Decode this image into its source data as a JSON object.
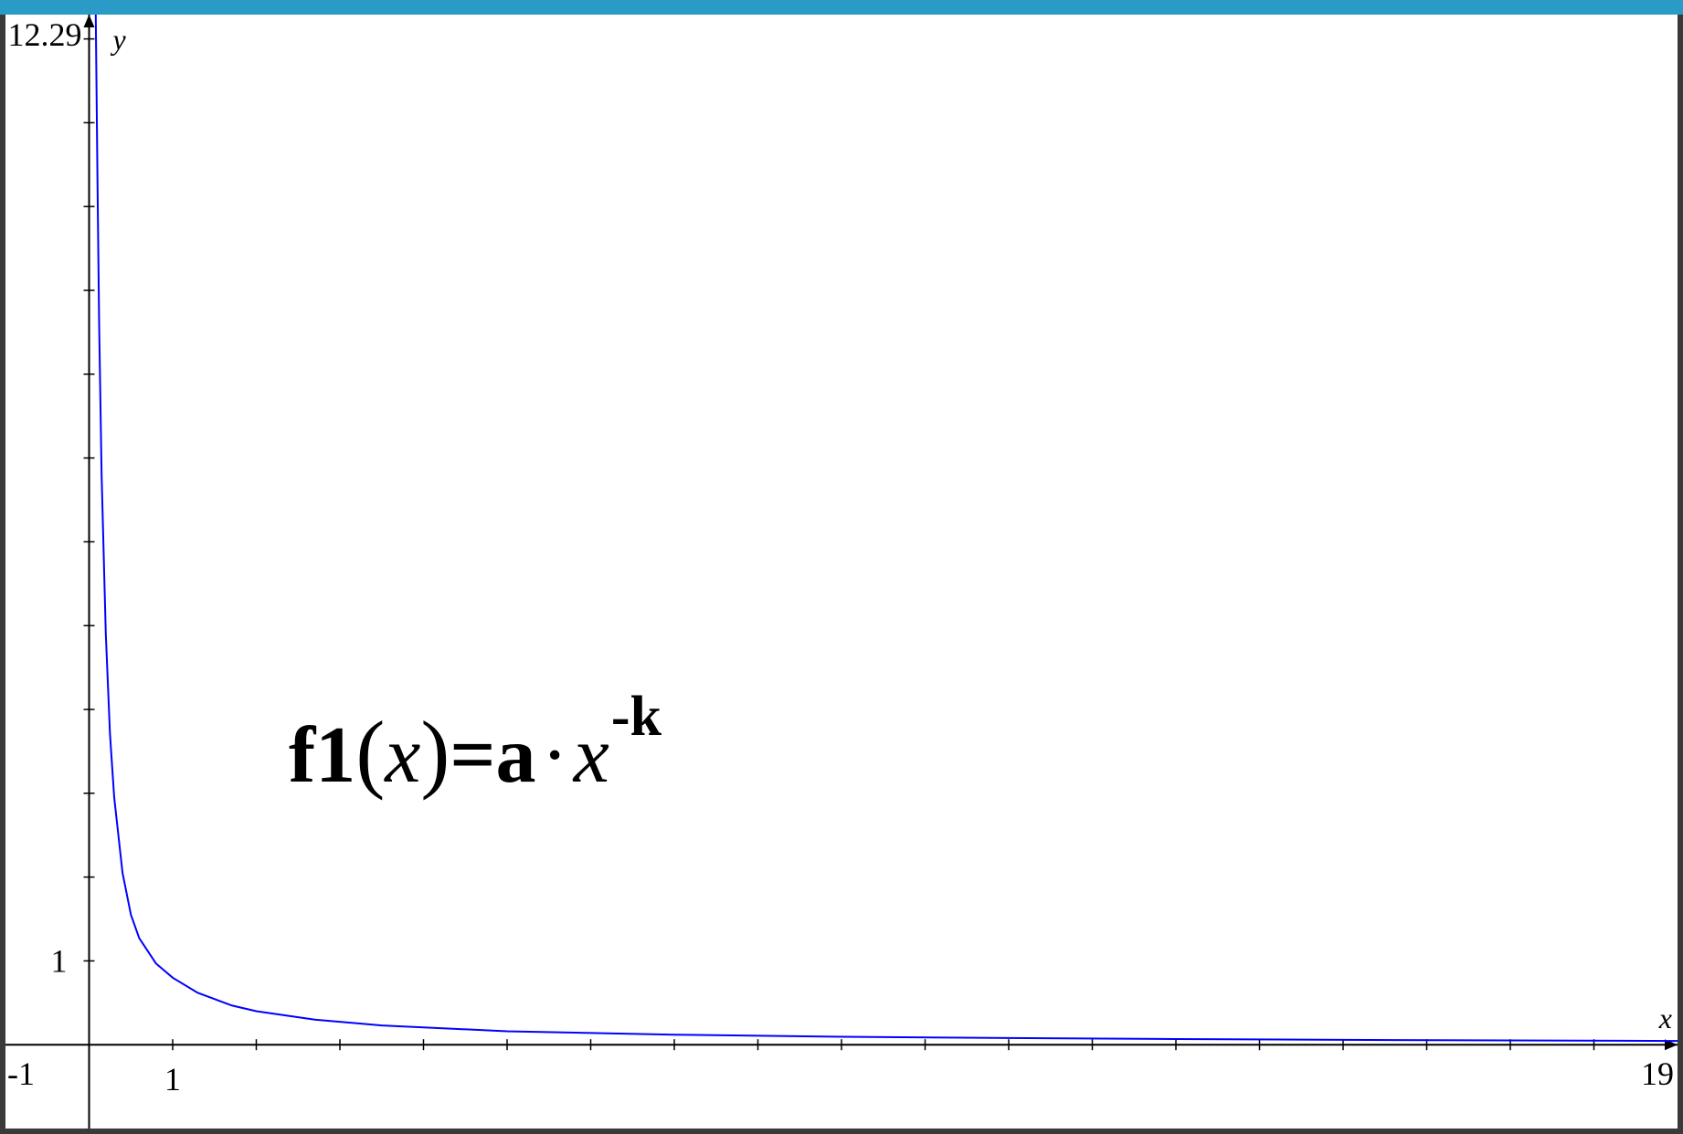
{
  "window": {
    "accent_color": "#2a9bc7"
  },
  "chart_data": {
    "type": "line",
    "function_label": {
      "name": "f1",
      "var": "x",
      "coef": "a",
      "dot": "·",
      "exponent": "-k"
    },
    "xlabel": "x",
    "ylabel": "y",
    "xlim": [
      -1,
      19
    ],
    "ylim": [
      -1,
      12.29
    ],
    "x_tick_labels": [
      "-1",
      "1",
      "19"
    ],
    "y_tick_labels": [
      "12.29",
      "1"
    ],
    "x_ticks": [
      1,
      2,
      3,
      4,
      5,
      6,
      7,
      8,
      9,
      10,
      11,
      12,
      13,
      14,
      15,
      16,
      17,
      18
    ],
    "y_ticks": [
      1,
      2,
      3,
      4,
      5,
      6,
      7,
      8,
      9,
      10,
      11,
      12
    ],
    "series": [
      {
        "color": "#0000ff",
        "x": [
          0.08,
          0.1,
          0.12,
          0.15,
          0.2,
          0.25,
          0.3,
          0.4,
          0.5,
          0.6,
          0.8,
          1.0,
          1.3,
          1.7,
          2.0,
          2.7,
          3.5,
          5,
          7,
          9,
          11,
          13,
          15,
          17,
          19
        ],
        "y": [
          12.29,
          10.3,
          8.6,
          6.8,
          4.9,
          3.7,
          2.95,
          2.05,
          1.55,
          1.27,
          0.97,
          0.8,
          0.62,
          0.47,
          0.4,
          0.3,
          0.23,
          0.16,
          0.12,
          0.095,
          0.08,
          0.068,
          0.058,
          0.051,
          0.045
        ]
      }
    ]
  }
}
